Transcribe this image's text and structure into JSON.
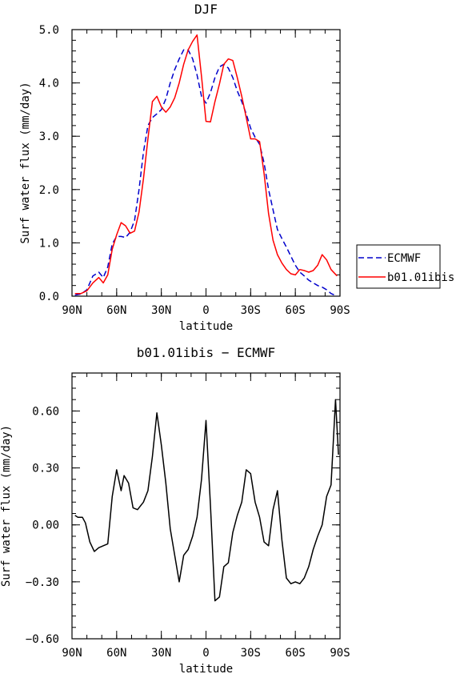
{
  "chart_data": [
    {
      "type": "line",
      "title": "DJF",
      "xlabel": "latitude",
      "ylabel": "Surf water flux (mm/day)",
      "xlim": [
        90,
        -90
      ],
      "ylim": [
        0,
        5
      ],
      "x_ticks": [
        90,
        60,
        30,
        0,
        -30,
        -60,
        -90
      ],
      "x_tick_labels": [
        "90N",
        "60N",
        "30N",
        "0",
        "30S",
        "60S",
        "90S"
      ],
      "y_ticks": [
        0,
        1,
        2,
        3,
        4,
        5
      ],
      "y_tick_labels": [
        "0.0",
        "1.0",
        "2.0",
        "3.0",
        "4.0",
        "5.0"
      ],
      "legend": "right",
      "series": [
        {
          "name": "ECMWF",
          "color": "#0000cc",
          "dash": "dashed",
          "x": [
            88,
            84,
            80,
            76,
            72,
            69,
            66,
            63,
            60,
            57,
            54,
            51,
            48,
            45,
            42,
            39,
            36,
            33,
            30,
            27,
            24,
            21,
            18,
            15,
            12,
            9,
            6,
            3,
            0,
            -3,
            -6,
            -9,
            -12,
            -15,
            -18,
            -21,
            -24,
            -27,
            -30,
            -33,
            -36,
            -39,
            -42,
            -45,
            -48,
            -51,
            -54,
            -57,
            -60,
            -63,
            -66,
            -69,
            -72,
            -75,
            -78,
            -81,
            -84,
            -88
          ],
          "y": [
            0.02,
            0.04,
            0.12,
            0.38,
            0.45,
            0.35,
            0.55,
            0.98,
            1.12,
            1.12,
            1.1,
            1.2,
            1.42,
            2.0,
            2.7,
            3.2,
            3.35,
            3.42,
            3.5,
            3.7,
            4.0,
            4.25,
            4.45,
            4.62,
            4.62,
            4.45,
            4.15,
            3.75,
            3.62,
            3.82,
            4.1,
            4.3,
            4.35,
            4.28,
            4.1,
            3.85,
            3.65,
            3.42,
            3.15,
            2.98,
            2.85,
            2.5,
            2.0,
            1.62,
            1.25,
            1.08,
            0.92,
            0.75,
            0.58,
            0.45,
            0.38,
            0.3,
            0.25,
            0.2,
            0.17,
            0.12,
            0.05,
            0.0
          ]
        },
        {
          "name": "b01.01ibis",
          "color": "#ff0000",
          "dash": "solid",
          "x": [
            88,
            84,
            80,
            76,
            72,
            69,
            66,
            63,
            60,
            57,
            54,
            51,
            48,
            45,
            42,
            39,
            36,
            33,
            30,
            27,
            24,
            21,
            18,
            15,
            12,
            9,
            6,
            3,
            0,
            -3,
            -6,
            -9,
            -12,
            -15,
            -18,
            -21,
            -24,
            -27,
            -30,
            -33,
            -36,
            -39,
            -42,
            -45,
            -48,
            -51,
            -54,
            -57,
            -60,
            -63,
            -66,
            -69,
            -72,
            -75,
            -78,
            -81,
            -84,
            -88
          ],
          "y": [
            0.05,
            0.05,
            0.1,
            0.25,
            0.35,
            0.25,
            0.4,
            0.88,
            1.15,
            1.38,
            1.32,
            1.18,
            1.22,
            1.58,
            2.2,
            2.95,
            3.65,
            3.75,
            3.55,
            3.45,
            3.55,
            3.72,
            4.0,
            4.35,
            4.62,
            4.78,
            4.9,
            4.12,
            3.28,
            3.27,
            3.65,
            3.98,
            4.35,
            4.45,
            4.42,
            4.1,
            3.75,
            3.35,
            2.95,
            2.95,
            2.9,
            2.3,
            1.55,
            1.05,
            0.78,
            0.62,
            0.5,
            0.42,
            0.4,
            0.5,
            0.48,
            0.45,
            0.48,
            0.58,
            0.78,
            0.68,
            0.5,
            0.38
          ]
        }
      ]
    },
    {
      "type": "line",
      "title": "b01.01ibis − ECMWF",
      "xlabel": "latitude",
      "ylabel": "Surf water flux (mm/day)",
      "xlim": [
        90,
        -90
      ],
      "ylim": [
        -0.6,
        0.8
      ],
      "x_ticks": [
        90,
        60,
        30,
        0,
        -30,
        -60,
        -90
      ],
      "x_tick_labels": [
        "90N",
        "60N",
        "30N",
        "0",
        "30S",
        "60S",
        "90S"
      ],
      "y_ticks": [
        -0.6,
        -0.3,
        0.0,
        0.3,
        0.6
      ],
      "y_tick_labels": [
        "−0.60",
        "−0.30",
        "0.00",
        "0.30",
        "0.60"
      ],
      "series": [
        {
          "color": "#000000",
          "dash": "solid",
          "x": [
            88,
            86,
            83,
            81,
            78,
            75,
            72,
            66,
            63,
            60,
            57,
            55,
            52,
            49,
            46,
            42,
            39,
            36,
            33,
            30,
            27,
            24,
            21,
            18,
            15,
            12,
            9,
            6,
            3,
            0,
            -3,
            -6,
            -9,
            -12,
            -15,
            -18,
            -21,
            -24,
            -27,
            -30,
            -33,
            -36,
            -39,
            -42,
            -45,
            -48,
            -51,
            -54,
            -57,
            -60,
            -63,
            -66,
            -69,
            -72,
            -75,
            -78,
            -81,
            -84,
            -87,
            -89
          ],
          "y": [
            0.05,
            0.04,
            0.04,
            0.01,
            -0.09,
            -0.14,
            -0.12,
            -0.1,
            0.15,
            0.29,
            0.18,
            0.26,
            0.22,
            0.09,
            0.08,
            0.12,
            0.18,
            0.36,
            0.59,
            0.42,
            0.22,
            -0.02,
            -0.16,
            -0.3,
            -0.16,
            -0.13,
            -0.06,
            0.04,
            0.24,
            0.55,
            0.1,
            -0.4,
            -0.38,
            -0.22,
            -0.2,
            -0.04,
            0.05,
            0.12,
            0.29,
            0.27,
            0.12,
            0.04,
            -0.09,
            -0.11,
            0.08,
            0.18,
            -0.08,
            -0.28,
            -0.31,
            -0.3,
            -0.31,
            -0.28,
            -0.22,
            -0.13,
            -0.06,
            0.0,
            0.15,
            0.21,
            0.66,
            0.37
          ]
        }
      ]
    }
  ]
}
